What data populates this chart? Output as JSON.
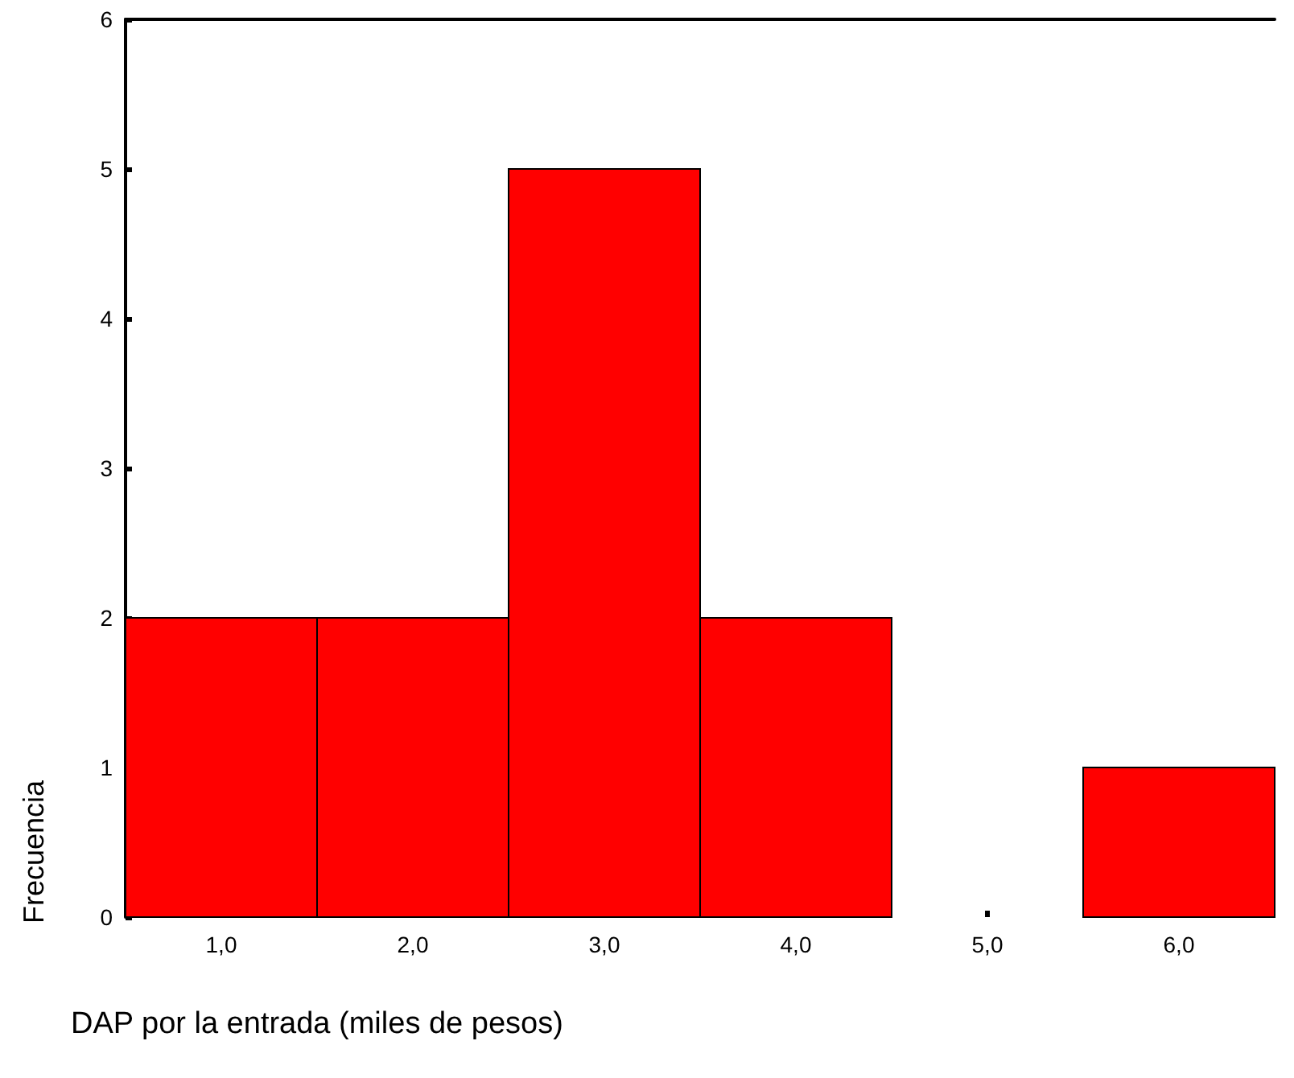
{
  "chart_data": {
    "type": "histogram",
    "xlabel": "DAP por la entrada (miles de pesos)",
    "ylabel": "Frecuencia",
    "bins": [
      0.5,
      1.5,
      2.5,
      3.5,
      4.5,
      5.5,
      6.5
    ],
    "values": [
      2,
      2,
      5,
      2,
      0,
      1
    ],
    "color": "#ff0000",
    "xlim": [
      0.5,
      6.5
    ],
    "xticks": [
      {
        "value": 1,
        "label": "1,0"
      },
      {
        "value": 2,
        "label": "2,0"
      },
      {
        "value": 3,
        "label": "3,0"
      },
      {
        "value": 4,
        "label": "4,0"
      },
      {
        "value": 5,
        "label": "5,0"
      },
      {
        "value": 6,
        "label": "6,0"
      }
    ],
    "ylim": [
      0,
      6
    ],
    "yticks": [
      0,
      1,
      2,
      3,
      4,
      5,
      6
    ],
    "grid": false
  }
}
